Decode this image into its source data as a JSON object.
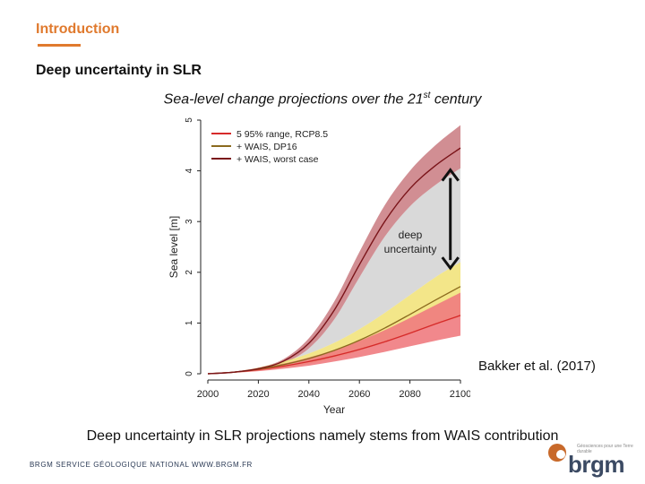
{
  "slide": {
    "section_title": "Introduction",
    "heading": "Deep uncertainty in SLR",
    "subtitle_main": "Sea-level change projections over the 21",
    "subtitle_sup": "st",
    "subtitle_end": " century",
    "citation": "Bakker et al. (2017)",
    "conclusion": "Deep uncertainty in SLR projections namely stems from WAIS contribution",
    "footer": "BRGM SERVICE GÉOLOGIQUE NATIONAL WWW.BRGM.FR",
    "logo_text": "brgm",
    "logo_tagline": "Géosciences pour une Terre durable"
  },
  "colors": {
    "accent": "#e07a2e",
    "rcp_band": "#f07b7f",
    "rcp_line": "#d62a2a",
    "dp16_band": "#f2e37c",
    "dp16_line": "#8b6a1e",
    "worst_band": "#c97a80",
    "worst_line": "#7a1419",
    "deep_band": "#d9d9d9"
  },
  "chart_data": {
    "type": "area",
    "title": "",
    "xlabel": "Year",
    "ylabel": "Sea level [m]",
    "xlim": [
      2000,
      2100
    ],
    "ylim": [
      0,
      5
    ],
    "xticks": [
      2000,
      2020,
      2040,
      2060,
      2080,
      2100
    ],
    "yticks": [
      0,
      1,
      2,
      3,
      4,
      5
    ],
    "grid": false,
    "legend_position": "top-left",
    "x": [
      2000,
      2010,
      2020,
      2030,
      2040,
      2050,
      2060,
      2070,
      2080,
      2090,
      2100
    ],
    "series": [
      {
        "name": "5  95% range, RCP8.5",
        "median": [
          0,
          0.03,
          0.08,
          0.15,
          0.24,
          0.35,
          0.48,
          0.63,
          0.8,
          0.98,
          1.15
        ],
        "lower": [
          0,
          0.02,
          0.05,
          0.1,
          0.16,
          0.24,
          0.33,
          0.43,
          0.54,
          0.65,
          0.75
        ],
        "upper": [
          0,
          0.04,
          0.11,
          0.2,
          0.32,
          0.47,
          0.65,
          0.86,
          1.1,
          1.35,
          1.6
        ]
      },
      {
        "name": "+ WAIS, DP16",
        "median": [
          0,
          0.03,
          0.09,
          0.18,
          0.3,
          0.46,
          0.66,
          0.9,
          1.17,
          1.45,
          1.72
        ],
        "lower": [
          0,
          0.02,
          0.06,
          0.12,
          0.2,
          0.31,
          0.45,
          0.61,
          0.78,
          0.96,
          1.12
        ],
        "upper": [
          0,
          0.04,
          0.12,
          0.24,
          0.4,
          0.61,
          0.88,
          1.2,
          1.55,
          1.9,
          2.2
        ]
      },
      {
        "name": "+ WAIS, worst  case",
        "median": [
          0,
          0.03,
          0.1,
          0.25,
          0.6,
          1.25,
          2.15,
          3.0,
          3.65,
          4.1,
          4.45
        ],
        "lower": [
          0,
          0.02,
          0.08,
          0.21,
          0.5,
          1.07,
          1.9,
          2.7,
          3.3,
          3.72,
          4.05
        ],
        "upper": [
          0,
          0.04,
          0.12,
          0.29,
          0.7,
          1.42,
          2.4,
          3.32,
          4.0,
          4.5,
          4.9
        ]
      }
    ],
    "annotations": [
      {
        "text_line1": "deep",
        "text_line2": "uncertainty",
        "arrow_from": [
          2096,
          4.0
        ],
        "arrow_to": [
          2096,
          2.1
        ]
      }
    ]
  }
}
